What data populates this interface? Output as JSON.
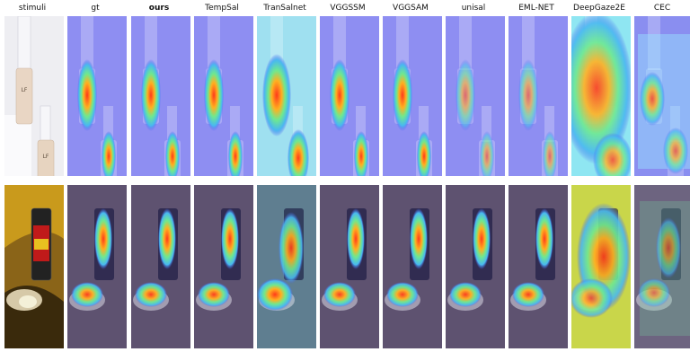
{
  "columns": [
    {
      "key": "stimuli",
      "label": "stimuli",
      "bold": false
    },
    {
      "key": "gt",
      "label": "gt",
      "bold": false
    },
    {
      "key": "ours",
      "label": "ours",
      "bold": true
    },
    {
      "key": "tempsal",
      "label": "TempSal",
      "bold": false
    },
    {
      "key": "transalnet",
      "label": "TranSalnet",
      "bold": false
    },
    {
      "key": "vggssm",
      "label": "VGGSSM",
      "bold": false
    },
    {
      "key": "vggsam",
      "label": "VGGSAM",
      "bold": false
    },
    {
      "key": "unisal",
      "label": "unisal",
      "bold": false
    },
    {
      "key": "emlnet",
      "label": "EML-NET",
      "bold": false
    },
    {
      "key": "deepgaze2e",
      "label": "DeepGaze2E",
      "bold": false
    },
    {
      "key": "cec",
      "label": "CEC",
      "bold": false
    }
  ],
  "rows": [
    {
      "key": "cosmetics",
      "subject": "foundation-bottles"
    },
    {
      "key": "can",
      "subject": "aerosol-can"
    }
  ],
  "colors": {
    "heat_low": "#3b4cc0",
    "heat_mid": "#4fd8a0",
    "heat_high": "#e8302a",
    "heat_peak": "#ff8c1a",
    "background": "#ffffff"
  }
}
